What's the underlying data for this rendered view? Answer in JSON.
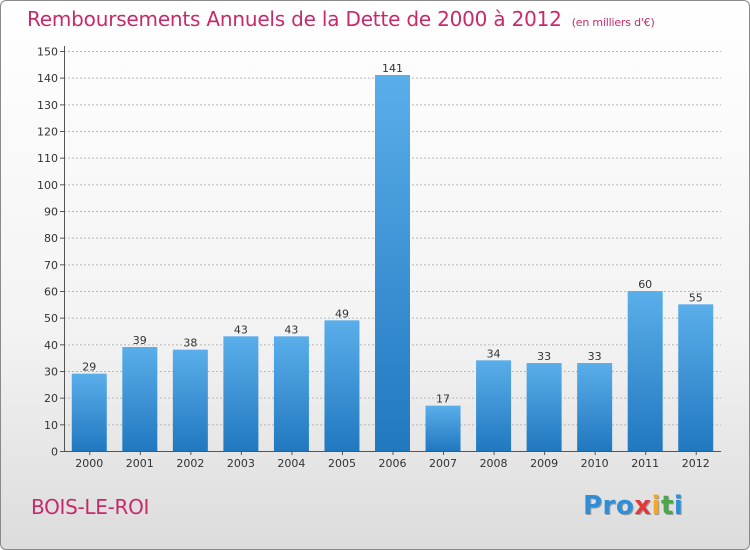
{
  "chart_data": {
    "type": "bar",
    "title": "Remboursements Annuels de la Dette de 2000 à 2012",
    "unit_label": "(en milliers d'€)",
    "categories": [
      "2000",
      "2001",
      "2002",
      "2003",
      "2004",
      "2005",
      "2006",
      "2007",
      "2008",
      "2009",
      "2010",
      "2011",
      "2012"
    ],
    "values": [
      29,
      39,
      38,
      43,
      43,
      49,
      141,
      17,
      34,
      33,
      33,
      60,
      55
    ],
    "ylim": [
      0,
      150
    ],
    "ytick_step": 10,
    "grid": true,
    "xlabel": "",
    "ylabel": ""
  },
  "footer": {
    "commune": "BOIS-LE-ROI",
    "logo": [
      "Pro",
      "x",
      "i",
      "t",
      "i"
    ]
  },
  "colors": {
    "title": "#c72a6a",
    "bar_light": "#5aaeea",
    "bar_dark": "#2178bf",
    "grid": "#b8b8b8"
  }
}
